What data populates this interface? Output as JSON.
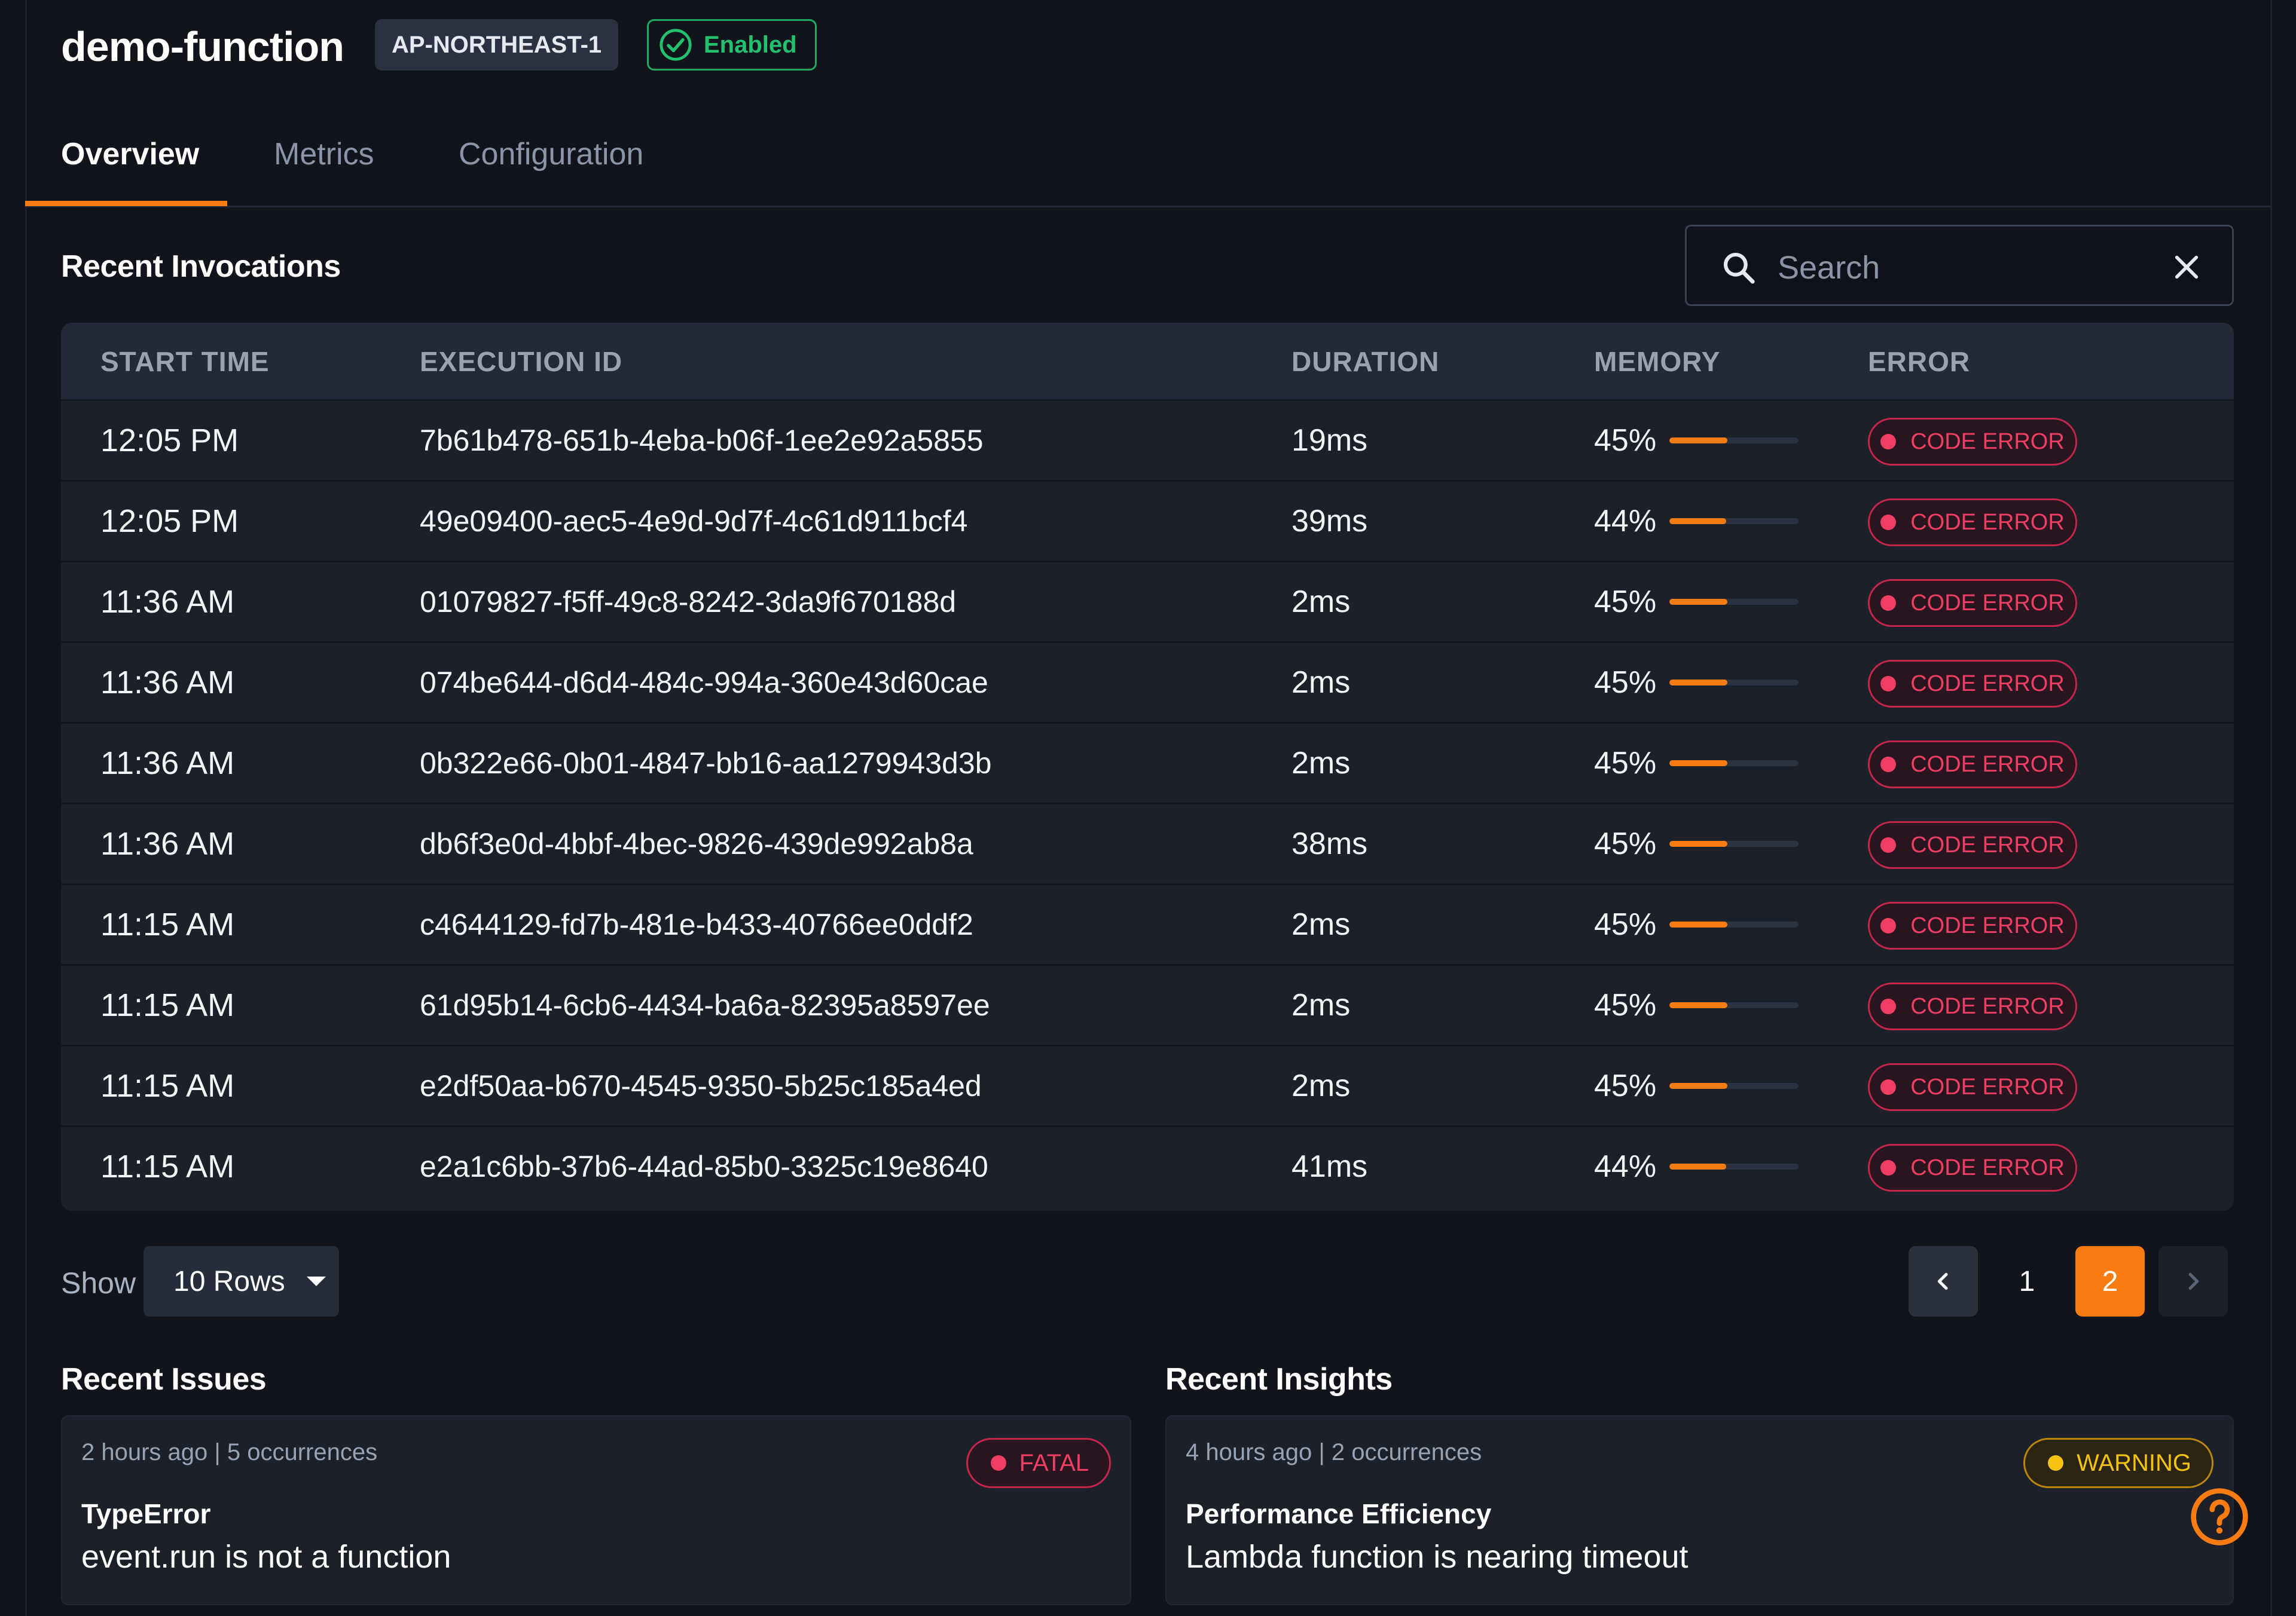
{
  "header": {
    "title": "demo-function",
    "region": "AP-NORTHEAST-1",
    "status": "Enabled",
    "status_color": "#22c06f"
  },
  "tabs": [
    {
      "label": "Overview",
      "active": true
    },
    {
      "label": "Metrics",
      "active": false
    },
    {
      "label": "Configuration",
      "active": false
    }
  ],
  "invocations": {
    "title": "Recent Invocations",
    "search_placeholder": "Search",
    "columns": {
      "start_time": "START TIME",
      "execution_id": "EXECUTION ID",
      "duration": "DURATION",
      "memory": "MEMORY",
      "error": "ERROR"
    },
    "rows": [
      {
        "start_time": "12:05 PM",
        "execution_id": "7b61b478-651b-4eba-b06f-1ee2e92a5855",
        "duration": "19ms",
        "memory": "45%",
        "memory_fraction": 0.45,
        "error": "CODE ERROR"
      },
      {
        "start_time": "12:05 PM",
        "execution_id": "49e09400-aec5-4e9d-9d7f-4c61d911bcf4",
        "duration": "39ms",
        "memory": "44%",
        "memory_fraction": 0.44,
        "error": "CODE ERROR"
      },
      {
        "start_time": "11:36 AM",
        "execution_id": "01079827-f5ff-49c8-8242-3da9f670188d",
        "duration": "2ms",
        "memory": "45%",
        "memory_fraction": 0.45,
        "error": "CODE ERROR"
      },
      {
        "start_time": "11:36 AM",
        "execution_id": "074be644-d6d4-484c-994a-360e43d60cae",
        "duration": "2ms",
        "memory": "45%",
        "memory_fraction": 0.45,
        "error": "CODE ERROR"
      },
      {
        "start_time": "11:36 AM",
        "execution_id": "0b322e66-0b01-4847-bb16-aa1279943d3b",
        "duration": "2ms",
        "memory": "45%",
        "memory_fraction": 0.45,
        "error": "CODE ERROR"
      },
      {
        "start_time": "11:36 AM",
        "execution_id": "db6f3e0d-4bbf-4bec-9826-439de992ab8a",
        "duration": "38ms",
        "memory": "45%",
        "memory_fraction": 0.45,
        "error": "CODE ERROR"
      },
      {
        "start_time": "11:15 AM",
        "execution_id": "c4644129-fd7b-481e-b433-40766ee0ddf2",
        "duration": "2ms",
        "memory": "45%",
        "memory_fraction": 0.45,
        "error": "CODE ERROR"
      },
      {
        "start_time": "11:15 AM",
        "execution_id": "61d95b14-6cb6-4434-ba6a-82395a8597ee",
        "duration": "2ms",
        "memory": "45%",
        "memory_fraction": 0.45,
        "error": "CODE ERROR"
      },
      {
        "start_time": "11:15 AM",
        "execution_id": "e2df50aa-b670-4545-9350-5b25c185a4ed",
        "duration": "2ms",
        "memory": "45%",
        "memory_fraction": 0.45,
        "error": "CODE ERROR"
      },
      {
        "start_time": "11:15 AM",
        "execution_id": "e2a1c6bb-37b6-44ad-85b0-3325c19e8640",
        "duration": "41ms",
        "memory": "44%",
        "memory_fraction": 0.44,
        "error": "CODE ERROR"
      }
    ]
  },
  "pagination": {
    "show_label": "Show",
    "rows_option": "10 Rows",
    "pages": [
      "1",
      "2"
    ],
    "current_page": "2"
  },
  "issues": {
    "title": "Recent Issues",
    "meta": "2 hours ago | 5 occurrences",
    "severity": "FATAL",
    "type": "TypeError",
    "message": "event.run is not a function"
  },
  "insights": {
    "title": "Recent Insights",
    "meta": "4 hours ago | 2 occurrences",
    "severity": "WARNING",
    "type": "Performance Efficiency",
    "message": "Lambda function is nearing timeout"
  },
  "colors": {
    "accent": "#f97c12",
    "error": "#ee3f62",
    "warning": "#f5c211",
    "background": "#11141b"
  },
  "icons": {
    "status": "check-circle-icon",
    "search": "search-icon",
    "clear": "close-icon",
    "error_dot": "dot-icon",
    "dropdown": "caret-down-icon",
    "prev": "chevron-left-icon",
    "next": "chevron-right-icon",
    "help": "help-circle-icon"
  }
}
